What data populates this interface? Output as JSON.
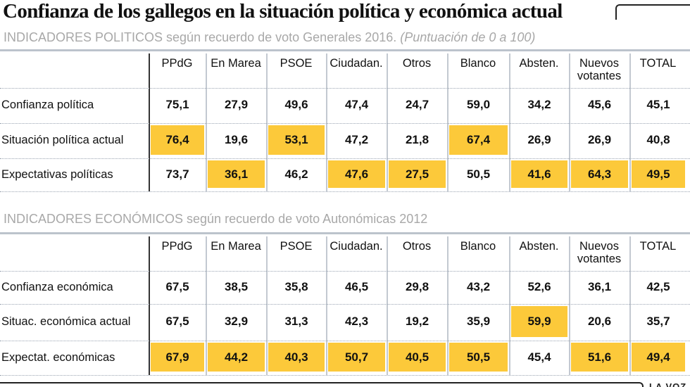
{
  "title": "Confianza de los gallegos en la situación política y económica actual",
  "highlight_color": "#fcc93a",
  "logo": "LA VOZ",
  "chart_data": [
    {
      "type": "table",
      "subtitle": "INDICADORES POLITICOS según recuerdo de voto Generales 2016.",
      "subtitle_note": "(Puntuación de 0 a 100)",
      "columns": [
        "PPdG",
        "En Marea",
        "PSOE",
        "Ciudadan.",
        "Otros",
        "Blanco",
        "Absten.",
        "Nuevos votantes",
        "TOTAL"
      ],
      "rows": [
        {
          "label": "Confianza política",
          "values": [
            "75,1",
            "27,9",
            "49,6",
            "47,4",
            "24,7",
            "59,0",
            "34,2",
            "45,6",
            "45,1"
          ],
          "highlight": [
            false,
            false,
            false,
            false,
            false,
            false,
            false,
            false,
            false
          ]
        },
        {
          "label": "Situación política actual",
          "values": [
            "76,4",
            "19,6",
            "53,1",
            "47,2",
            "21,8",
            "67,4",
            "26,9",
            "26,9",
            "40,8"
          ],
          "highlight": [
            true,
            false,
            true,
            false,
            false,
            true,
            false,
            false,
            false
          ]
        },
        {
          "label": "Expectativas políticas",
          "values": [
            "73,7",
            "36,1",
            "46,2",
            "47,6",
            "27,5",
            "50,5",
            "41,6",
            "64,3",
            "49,5"
          ],
          "highlight": [
            false,
            true,
            false,
            true,
            true,
            false,
            true,
            true,
            true
          ]
        }
      ]
    },
    {
      "type": "table",
      "subtitle": "INDICADORES ECONÓMICOS según recuerdo de voto Autonómicas 2012",
      "columns": [
        "PPdG",
        "En Marea",
        "PSOE",
        "Ciudadan.",
        "Otros",
        "Blanco",
        "Absten.",
        "Nuevos votantes",
        "TOTAL"
      ],
      "rows": [
        {
          "label": "Confianza económica",
          "values": [
            "67,5",
            "38,5",
            "35,8",
            "46,5",
            "29,8",
            "43,2",
            "52,6",
            "36,1",
            "42,5"
          ],
          "highlight": [
            false,
            false,
            false,
            false,
            false,
            false,
            false,
            false,
            false
          ]
        },
        {
          "label": "Situac. económica actual",
          "values": [
            "67,5",
            "32,9",
            "31,3",
            "42,3",
            "19,2",
            "35,9",
            "59,9",
            "20,6",
            "35,7"
          ],
          "highlight": [
            false,
            false,
            false,
            false,
            false,
            false,
            true,
            false,
            false
          ]
        },
        {
          "label": "Expectat. económicas",
          "values": [
            "67,9",
            "44,2",
            "40,3",
            "50,7",
            "40,5",
            "50,5",
            "45,4",
            "51,6",
            "49,4"
          ],
          "highlight": [
            true,
            true,
            true,
            true,
            true,
            true,
            false,
            true,
            true
          ]
        }
      ]
    }
  ]
}
